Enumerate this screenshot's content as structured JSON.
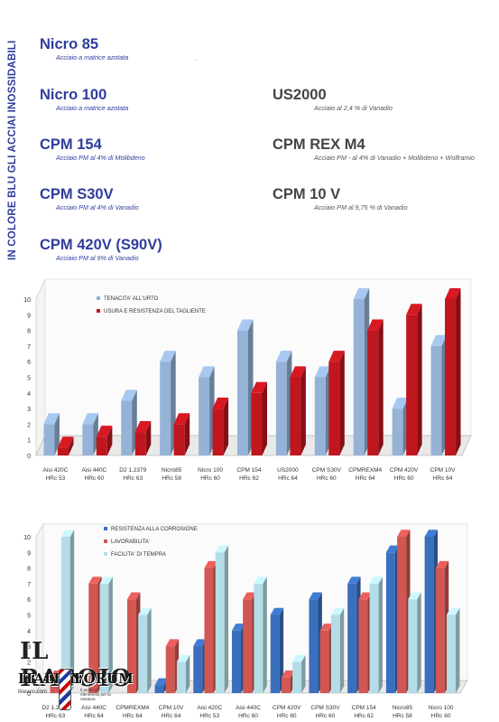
{
  "page": {
    "vertical_title": "IN COLORE BLU GLI ACCIAI INOSSIDABILI",
    "dot": "."
  },
  "steels_left": [
    {
      "name": "Nicro 85",
      "desc": "Acciaio a matrice azotata"
    },
    {
      "name": "Nicro 100",
      "desc": "Acciaio a matrice azotata"
    },
    {
      "name": "CPM 154",
      "desc": "Acciaio PM al 4% di Molibdeno"
    },
    {
      "name": "CPM S30V",
      "desc": "Acciaio PM al  4% di Vanadio"
    },
    {
      "name": "CPM 420V (S90V)",
      "desc": "Acciaio PM al 9% di Vanadio"
    }
  ],
  "steels_right": [
    {
      "name": "US2000",
      "desc": "Acciaio al 2,4 % di Vanadio"
    },
    {
      "name": "CPM REX M4",
      "desc": "Acciaio PM - al 4% di Vanadio + Molibdeno + Wolframio"
    },
    {
      "name": "CPM 10 V",
      "desc": "Acciaio PM al 9,75 % di Vanadio"
    }
  ],
  "colors": {
    "blue_text": "#2f3d9c",
    "gray_text": "#444444",
    "light_blue_bar": "#95b3d7",
    "red_bar": "#c0161e",
    "blue_bar": "#3a6fbd",
    "coral_bar": "#d25652",
    "cyan_bar": "#b5dde8"
  },
  "logo": {
    "line1": "IL RASOIO",
    "line2": "ITALIAN",
    "line3": "FORUM",
    "line4": "ilrasoio.com",
    "line5": "Il punto di riferimento per la rasatura"
  },
  "chart_data": [
    {
      "type": "bar",
      "title": "",
      "categories": [
        "Aisi 420C\nHRc 53",
        "Aisi 440C\nHRc 60",
        "D2 1.2379\nHRc 63",
        "Nicro85\nHRc 58",
        "Nicro 100\nHRc 60",
        "CPM 154\nHRc 62",
        "US2000\nHRc 64",
        "CPM S30V\nHRc 60",
        "CPMREXM4\nHRc 64",
        "CPM 420V\nHRc 60",
        "CPM 10V\nHRc 64"
      ],
      "series": [
        {
          "name": "TENACITA' ALL'URTO",
          "values": [
            2,
            2,
            3.5,
            6,
            5,
            8,
            6,
            5,
            10,
            3,
            7
          ]
        },
        {
          "name": "USURA E RESISTENZA DEL TAGLIENTE",
          "values": [
            0.5,
            1.2,
            1.5,
            2,
            3,
            4,
            5,
            6,
            8,
            9,
            10
          ]
        }
      ],
      "yticks": [
        "0",
        "1",
        "2",
        "3",
        "4",
        "5",
        "6",
        "7",
        "8",
        "9",
        "10"
      ],
      "ylim": [
        0,
        10
      ],
      "legend": "top-left",
      "grid": false
    },
    {
      "type": "bar",
      "title": "",
      "categories": [
        "D2 1.2379\nHRc 63",
        "Aisi 440C\nHRc 64",
        "CPMREXM4\nHRc 64",
        "CPM 10V\nHRc 64",
        "Aisi 420C\nHRc 53",
        "Aisi 440C\nHRc 60",
        "CPM 420V\nHRc 60",
        "CPM S30V\nHRc 60",
        "CPM 154\nHRc 62",
        "Nicro85\nHRc 58",
        "Nicro 100\nHRc 60"
      ],
      "series": [
        {
          "name": "RESISTENZA ALLA CORROSIONE",
          "values": [
            0,
            0,
            0,
            0.5,
            3,
            4,
            5,
            6,
            7,
            9,
            10
          ]
        },
        {
          "name": "LAVORABILITA'",
          "values": [
            1,
            7,
            6,
            3,
            8,
            6,
            1,
            4,
            6,
            10,
            8
          ]
        },
        {
          "name": "FACILITA' DI TEMPRA",
          "values": [
            10,
            7,
            5,
            2,
            9,
            7,
            2,
            5,
            7,
            6,
            5
          ]
        }
      ],
      "yticks": [
        "0",
        "1",
        "2",
        "3",
        "4",
        "5",
        "6",
        "7",
        "8",
        "9",
        "10"
      ],
      "ylim": [
        0,
        10
      ],
      "legend": "top-center",
      "grid": false
    }
  ]
}
